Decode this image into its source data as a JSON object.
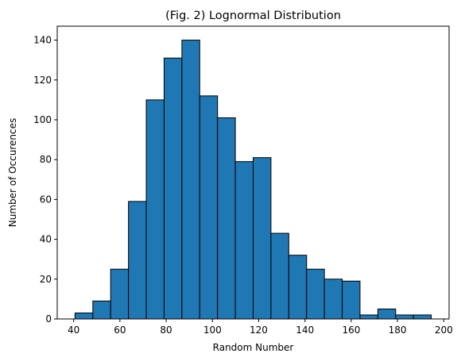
{
  "chart_data": {
    "type": "bar",
    "subtype": "histogram",
    "title": "(Fig. 2) Lognormal Distribution",
    "xlabel": "Random Number",
    "ylabel": "Number of Occurences",
    "bin_edges": [
      40.6,
      48.3,
      56.0,
      63.7,
      71.4,
      79.1,
      86.8,
      94.5,
      102.2,
      109.9,
      117.6,
      125.3,
      133.0,
      140.7,
      148.4,
      156.1,
      163.8,
      171.5,
      179.2,
      186.9,
      194.6
    ],
    "values": [
      3,
      9,
      25,
      59,
      110,
      131,
      140,
      112,
      101,
      79,
      81,
      43,
      32,
      25,
      20,
      19,
      2,
      5,
      2,
      2
    ],
    "xlim": [
      32.9,
      202.3
    ],
    "ylim": [
      0,
      147
    ],
    "x_ticks": [
      40,
      60,
      80,
      100,
      120,
      140,
      160,
      180,
      200
    ],
    "y_ticks": [
      0,
      20,
      40,
      60,
      80,
      100,
      120,
      140
    ],
    "bar_color": "#1f77b4",
    "edge_color": "#000000",
    "grid": false,
    "legend": "none"
  }
}
